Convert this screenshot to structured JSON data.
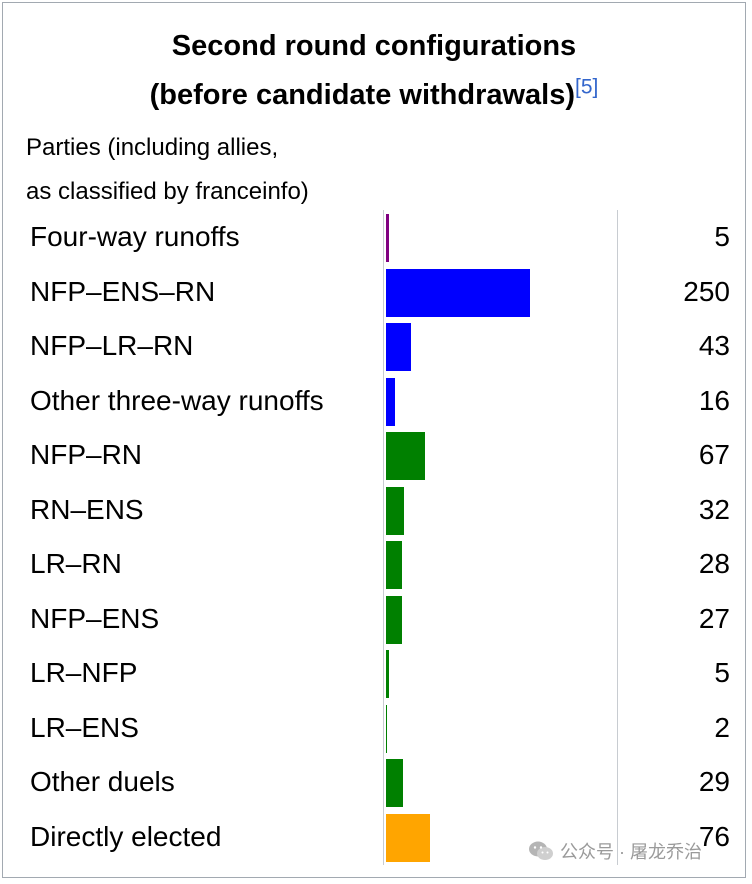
{
  "title_line1": "Second round configurations",
  "title_line2": "(before candidate withdrawals)",
  "title_ref": "[5]",
  "subtitle_line1": "Parties (including allies,",
  "subtitle_line2": "as classified by franceinfo)",
  "watermark_text": "公众号 · 屠龙乔治",
  "watermark_icon": "wechat-icon",
  "colors": {
    "four_way": "#800080",
    "three_way": "#0000ff",
    "duel": "#008000",
    "elected": "#ffa500"
  },
  "chart_data": {
    "type": "bar",
    "orientation": "horizontal",
    "title": "Second round configurations (before candidate withdrawals)",
    "categories": [
      "Four-way runoffs",
      "NFP–ENS–RN",
      "NFP–LR–RN",
      "Other three-way runoffs",
      "NFP–RN",
      "RN–ENS",
      "LR–RN",
      "NFP–ENS",
      "LR–NFP",
      "LR–ENS",
      "Other duels",
      "Directly elected"
    ],
    "values": [
      5,
      250,
      43,
      16,
      67,
      32,
      28,
      27,
      5,
      2,
      29,
      76
    ],
    "groups": [
      "four_way",
      "three_way",
      "three_way",
      "three_way",
      "duel",
      "duel",
      "duel",
      "duel",
      "duel",
      "duel",
      "duel",
      "elected"
    ],
    "xlim": [
      0,
      250
    ],
    "grid": false,
    "legend": "none"
  }
}
